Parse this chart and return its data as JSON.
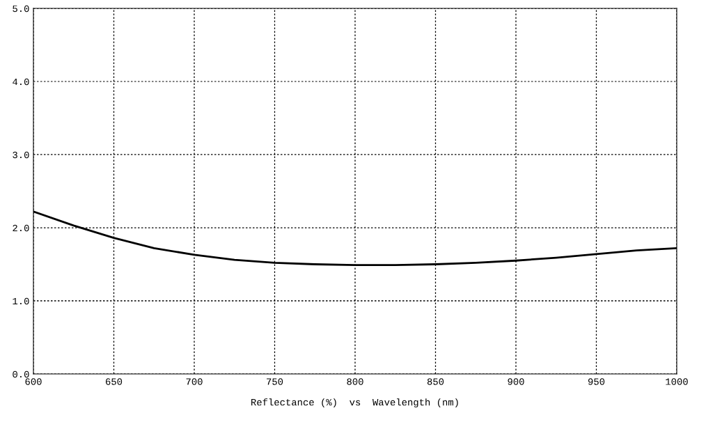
{
  "chart_data": {
    "type": "line",
    "xlabel": "Reflectance (%)  vs  Wavelength (nm)",
    "x": [
      600,
      625,
      650,
      675,
      700,
      725,
      750,
      775,
      800,
      825,
      850,
      875,
      900,
      925,
      950,
      975,
      1000
    ],
    "series": [
      {
        "color": "#000000",
        "values": [
          2.22,
          2.03,
          1.86,
          1.72,
          1.63,
          1.56,
          1.52,
          1.5,
          1.49,
          1.49,
          1.5,
          1.52,
          1.55,
          1.59,
          1.64,
          1.69,
          1.72
        ]
      }
    ],
    "xlim": [
      600,
      1000
    ],
    "ylim": [
      0,
      5
    ],
    "xticks": [
      600,
      650,
      700,
      750,
      800,
      850,
      900,
      950,
      1000
    ],
    "yticks": [
      {
        "value": 0,
        "label": "0.0"
      },
      {
        "value": 1,
        "label": "1.0"
      },
      {
        "value": 2,
        "label": "2.0"
      },
      {
        "value": 3,
        "label": "3.0"
      },
      {
        "value": 4,
        "label": "4.0"
      },
      {
        "value": 5,
        "label": "5.0"
      }
    ],
    "grid": true,
    "line_style": "solid",
    "marker": "none"
  }
}
